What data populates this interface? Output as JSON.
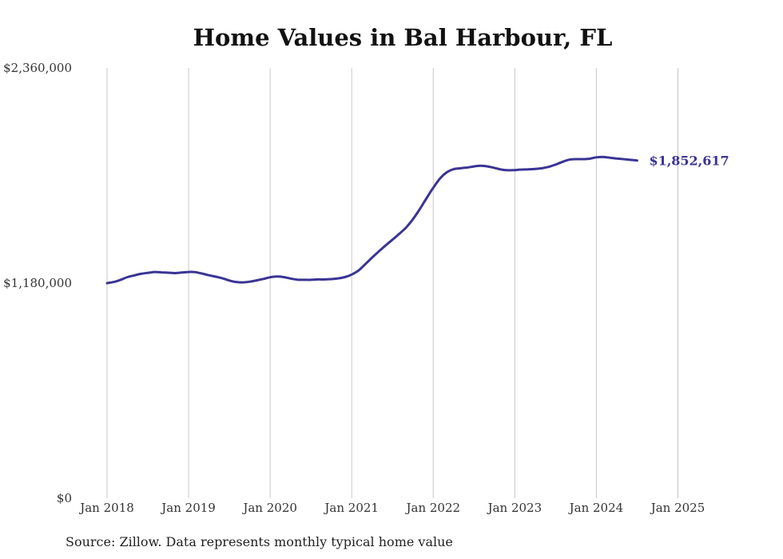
{
  "chart_data": {
    "type": "line",
    "title": "Home Values in Bal Harbour, FL",
    "source": "Source: Zillow. Data represents monthly typical home value",
    "xlabel": "",
    "ylabel": "",
    "ylim": [
      0,
      2360000
    ],
    "xlim": [
      "2018-01",
      "2025-04"
    ],
    "grid": "vertical",
    "color": "#3b3494",
    "y_tick_labels": [
      "$0",
      "$1,180,000",
      "$2,360,000"
    ],
    "y_ticks": [
      0,
      1180000,
      2360000
    ],
    "x_ticks": [
      "2018-01",
      "2019-01",
      "2020-01",
      "2021-01",
      "2022-01",
      "2023-01",
      "2024-01",
      "2025-01"
    ],
    "x_tick_labels": [
      "Jan 2018",
      "Jan 2019",
      "Jan 2020",
      "Jan 2021",
      "Jan 2022",
      "Jan 2023",
      "Jan 2024",
      "Jan 2025"
    ],
    "end_label": "$1,852,617",
    "series": [
      {
        "name": "",
        "points": [
          [
            "2018-01",
            1180000
          ],
          [
            "2018-02",
            1186000
          ],
          [
            "2018-03",
            1198000
          ],
          [
            "2018-04",
            1213000
          ],
          [
            "2018-05",
            1222000
          ],
          [
            "2018-06",
            1231000
          ],
          [
            "2018-07",
            1236000
          ],
          [
            "2018-08",
            1241000
          ],
          [
            "2018-09",
            1239000
          ],
          [
            "2018-10",
            1237000
          ],
          [
            "2018-11",
            1235000
          ],
          [
            "2018-12",
            1238000
          ],
          [
            "2019-01",
            1241000
          ],
          [
            "2019-02",
            1240000
          ],
          [
            "2019-03",
            1232000
          ],
          [
            "2019-04",
            1223000
          ],
          [
            "2019-05",
            1215000
          ],
          [
            "2019-06",
            1206000
          ],
          [
            "2019-07",
            1194000
          ],
          [
            "2019-08",
            1186000
          ],
          [
            "2019-09",
            1184000
          ],
          [
            "2019-10",
            1188000
          ],
          [
            "2019-11",
            1195000
          ],
          [
            "2019-12",
            1203000
          ],
          [
            "2020-01",
            1212000
          ],
          [
            "2020-02",
            1216000
          ],
          [
            "2020-03",
            1213000
          ],
          [
            "2020-04",
            1205000
          ],
          [
            "2020-05",
            1199000
          ],
          [
            "2020-06",
            1198000
          ],
          [
            "2020-07",
            1198000
          ],
          [
            "2020-08",
            1200000
          ],
          [
            "2020-09",
            1200000
          ],
          [
            "2020-10",
            1202000
          ],
          [
            "2020-11",
            1206000
          ],
          [
            "2020-12",
            1213000
          ],
          [
            "2021-01",
            1227000
          ],
          [
            "2021-02",
            1249000
          ],
          [
            "2021-03",
            1284000
          ],
          [
            "2021-04",
            1320000
          ],
          [
            "2021-05",
            1354000
          ],
          [
            "2021-06",
            1387000
          ],
          [
            "2021-07",
            1418000
          ],
          [
            "2021-08",
            1450000
          ],
          [
            "2021-09",
            1485000
          ],
          [
            "2021-10",
            1530000
          ],
          [
            "2021-11",
            1585000
          ],
          [
            "2021-12",
            1645000
          ],
          [
            "2022-01",
            1703000
          ],
          [
            "2022-02",
            1754000
          ],
          [
            "2022-03",
            1788000
          ],
          [
            "2022-04",
            1805000
          ],
          [
            "2022-05",
            1810000
          ],
          [
            "2022-06",
            1814000
          ],
          [
            "2022-07",
            1820000
          ],
          [
            "2022-08",
            1824000
          ],
          [
            "2022-09",
            1820000
          ],
          [
            "2022-10",
            1812000
          ],
          [
            "2022-11",
            1803000
          ],
          [
            "2022-12",
            1799000
          ],
          [
            "2023-01",
            1800000
          ],
          [
            "2023-02",
            1803000
          ],
          [
            "2023-03",
            1804000
          ],
          [
            "2023-04",
            1806000
          ],
          [
            "2023-05",
            1810000
          ],
          [
            "2023-06",
            1818000
          ],
          [
            "2023-07",
            1830000
          ],
          [
            "2023-08",
            1845000
          ],
          [
            "2023-09",
            1857000
          ],
          [
            "2023-10",
            1860000
          ],
          [
            "2023-11",
            1860000
          ],
          [
            "2023-12",
            1862000
          ],
          [
            "2024-01",
            1870000
          ],
          [
            "2024-02",
            1872000
          ],
          [
            "2024-03",
            1868000
          ],
          [
            "2024-04",
            1863000
          ],
          [
            "2024-05",
            1860000
          ],
          [
            "2024-06",
            1856000
          ],
          [
            "2024-07",
            1852617
          ]
        ]
      }
    ]
  }
}
